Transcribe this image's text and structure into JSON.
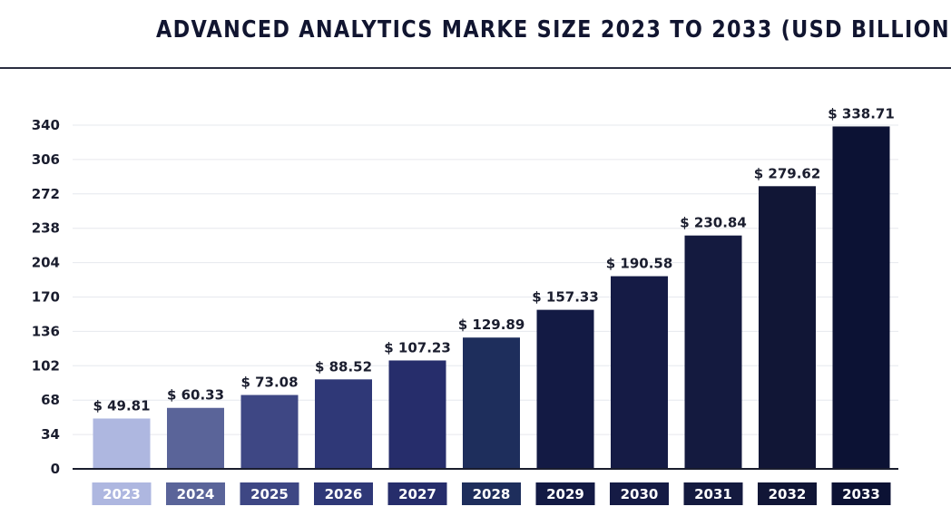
{
  "header": {
    "title": "ADVANCED ANALYTICS MARKE SIZE 2023 TO 2033 (USD BILLION)"
  },
  "chart_data": {
    "type": "bar",
    "title": "ADVANCED ANALYTICS MARKE SIZE 2023 TO 2033 (USD BILLION)",
    "xlabel": "",
    "ylabel": "",
    "categories": [
      "2023",
      "2024",
      "2025",
      "2026",
      "2027",
      "2028",
      "2029",
      "2030",
      "2031",
      "2032",
      "2033"
    ],
    "values": [
      49.81,
      60.33,
      73.08,
      88.52,
      107.23,
      129.89,
      157.33,
      190.58,
      230.84,
      279.62,
      338.71
    ],
    "value_labels": [
      "$ 49.81",
      "$ 60.33",
      "$ 73.08",
      "$ 88.52",
      "$ 107.23",
      "$ 129.89",
      "$ 157.33",
      "$ 190.58",
      "$ 230.84",
      "$ 279.62",
      "$ 338.71"
    ],
    "yticks": [
      0,
      34,
      68,
      102,
      136,
      170,
      204,
      238,
      272,
      306,
      340
    ],
    "ylim": [
      0,
      340
    ],
    "grid": true,
    "legend": "none",
    "bar_colors": [
      "#aeb7e0",
      "#5a6499",
      "#3e4784",
      "#2f3877",
      "#262d6b",
      "#1e2e5c",
      "#131a44",
      "#151b45",
      "#141a3f",
      "#111636",
      "#0c1234"
    ]
  }
}
